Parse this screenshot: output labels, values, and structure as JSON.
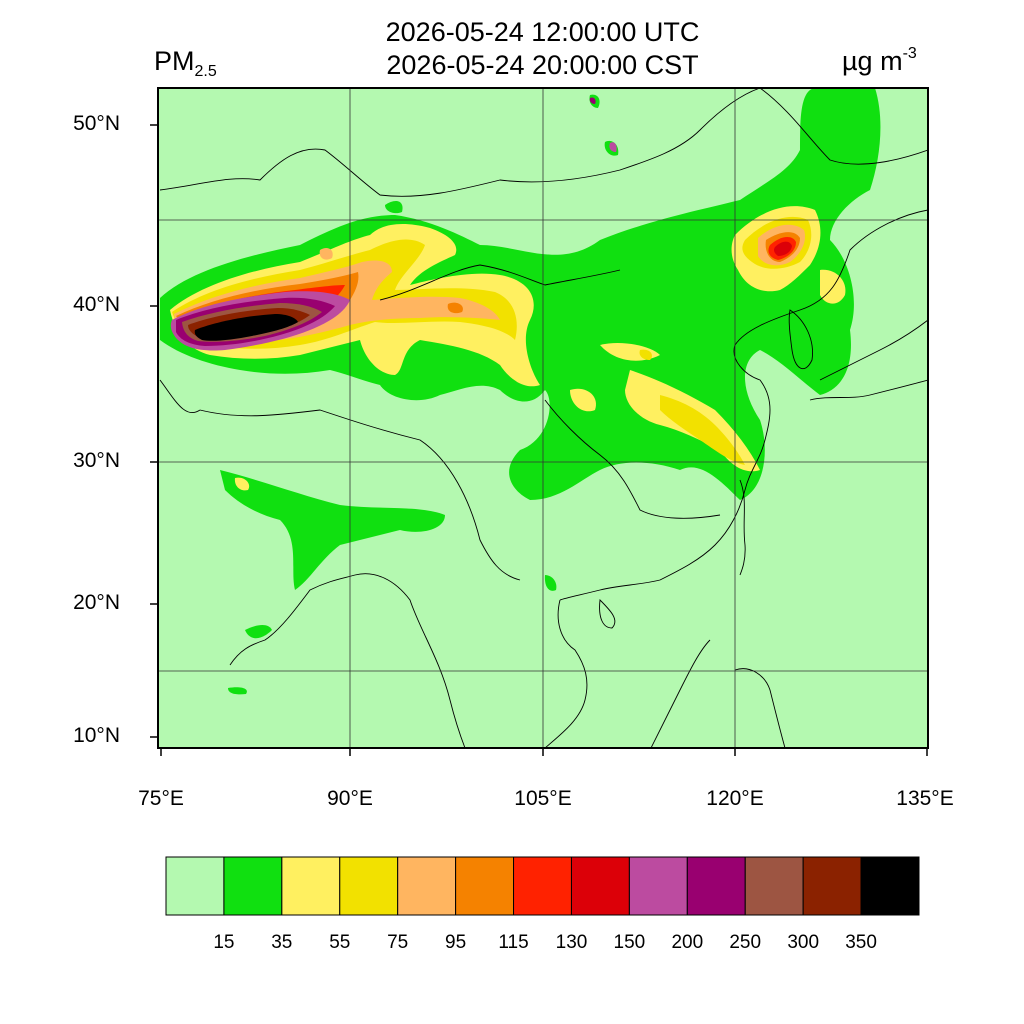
{
  "header": {
    "title_utc": "2026-05-24 12:00:00 UTC",
    "title_cst": "2026-05-24 20:00:00 CST",
    "variable": "PM",
    "variable_sub": "2.5",
    "units": "µg m",
    "units_sup": "-3"
  },
  "axes": {
    "lat_ticks": [
      "10°N",
      "20°N",
      "30°N",
      "40°N",
      "50°N"
    ],
    "lon_ticks": [
      "75°E",
      "90°E",
      "105°E",
      "120°E",
      "135°E"
    ]
  },
  "colorbar": {
    "labels": [
      "15",
      "35",
      "55",
      "75",
      "95",
      "115",
      "130",
      "150",
      "200",
      "250",
      "300",
      "350"
    ],
    "colors": [
      "#b4f9b0",
      "#10e010",
      "#fff060",
      "#f2e100",
      "#ffb560",
      "#f58200",
      "#ff2200",
      "#dc0008",
      "#bc4ba0",
      "#990070",
      "#9d5542",
      "#8b2200",
      "#000000"
    ]
  },
  "map": {
    "background_color": "#b4f9b0",
    "grid_lines": true
  }
}
